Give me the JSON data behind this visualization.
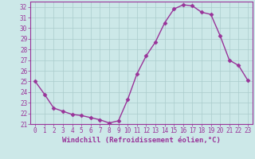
{
  "x": [
    0,
    1,
    2,
    3,
    4,
    5,
    6,
    7,
    8,
    9,
    10,
    11,
    12,
    13,
    14,
    15,
    16,
    17,
    18,
    19,
    20,
    21,
    22,
    23
  ],
  "y": [
    25.0,
    23.8,
    22.5,
    22.2,
    21.9,
    21.8,
    21.6,
    21.4,
    21.1,
    21.3,
    23.3,
    25.7,
    27.4,
    28.7,
    30.5,
    31.8,
    32.2,
    32.1,
    31.5,
    31.3,
    29.3,
    27.0,
    26.5,
    25.1
  ],
  "line_color": "#993399",
  "marker": "D",
  "marker_size": 2.5,
  "bg_color": "#cce8e8",
  "grid_color": "#aacccc",
  "xlabel": "Windchill (Refroidissement éolien,°C)",
  "ylim": [
    21,
    32.5
  ],
  "xlim": [
    -0.5,
    23.5
  ],
  "yticks": [
    21,
    22,
    23,
    24,
    25,
    26,
    27,
    28,
    29,
    30,
    31,
    32
  ],
  "xticks": [
    0,
    1,
    2,
    3,
    4,
    5,
    6,
    7,
    8,
    9,
    10,
    11,
    12,
    13,
    14,
    15,
    16,
    17,
    18,
    19,
    20,
    21,
    22,
    23
  ],
  "tick_fontsize": 5.5,
  "xlabel_fontsize": 6.5,
  "line_width": 1.0
}
